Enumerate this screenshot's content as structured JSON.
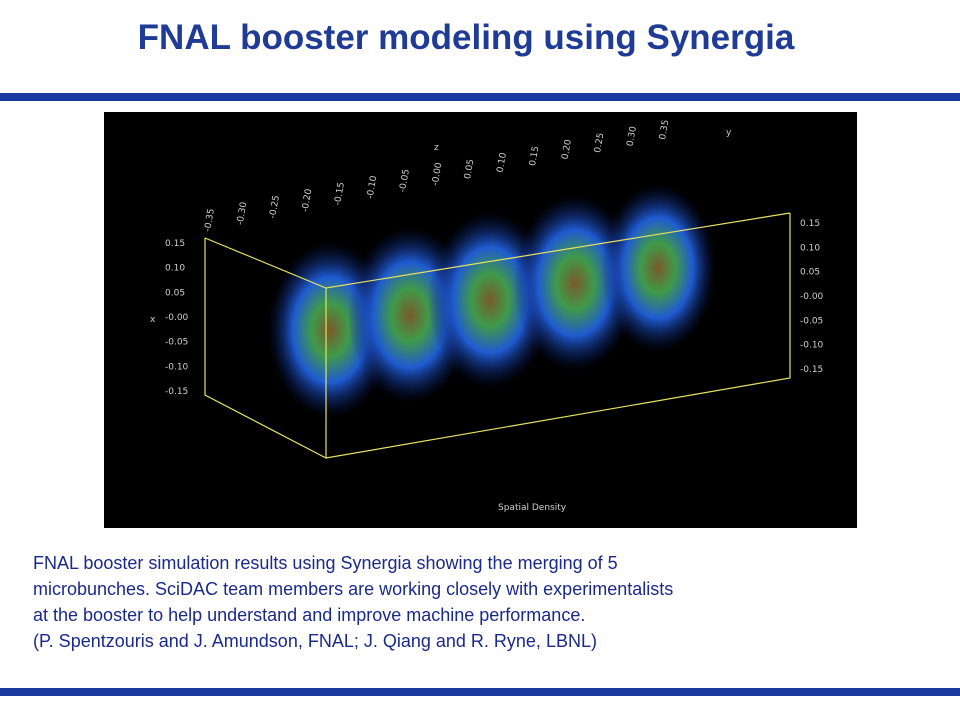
{
  "header": {
    "title": "FNAL booster modeling using Synergia"
  },
  "figure": {
    "z_axis_label": "z",
    "y_axis_label": "y",
    "x_axis_label": "x",
    "top_ticks": [
      "-0.35",
      "-0.30",
      "-0.25",
      "-0.20",
      "-0.15",
      "-0.10",
      "-0.05",
      "-0.00",
      "0.05",
      "0.10",
      "0.15",
      "0.20",
      "0.25",
      "0.30",
      "0.35"
    ],
    "left_ticks": [
      "0.15",
      "0.10",
      "0.05",
      "-0.00",
      "-0.05",
      "-0.10",
      "-0.15"
    ],
    "right_ticks": [
      "0.15",
      "0.10",
      "0.05",
      "-0.00",
      "-0.05",
      "-0.10",
      "-0.15"
    ],
    "caption": "Spatial Density"
  },
  "body": {
    "lines": [
      "FNAL booster simulation results using Synergia showing the merging of 5",
      "microbunches. SciDAC team members are working closely with experimentalists",
      "at the booster to help understand and improve machine performance.",
      "(P. Spentzouris and J. Amundson, FNAL; J. Qiang and R. Ryne, LBNL)"
    ]
  }
}
